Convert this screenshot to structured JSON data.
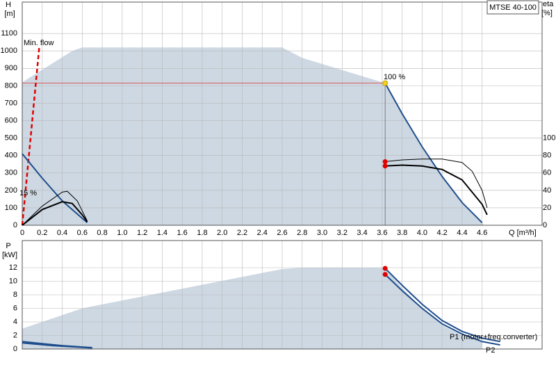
{
  "chart_data": [
    {
      "type": "line",
      "title": "MTSE 40-100",
      "ylabel": "H",
      "yunit": "[m]",
      "y2label": "eta",
      "y2unit": "[%]",
      "xlabel": "Q [m³/h]",
      "annotations": [
        "Min. flow",
        "100 %",
        "15 %"
      ],
      "xlim": [
        0,
        5.2
      ],
      "xticks": [
        0,
        0.2,
        0.4,
        0.6,
        0.8,
        {
          "value": 1,
          "label": "1.0"
        },
        1.2,
        1.4,
        1.6,
        1.8,
        {
          "value": 2,
          "label": "2.0"
        },
        2.2,
        2.4,
        2.6,
        2.8,
        {
          "value": 3,
          "label": "3.0"
        },
        3.2,
        3.4,
        3.6,
        3.8,
        {
          "value": 4,
          "label": "4.0"
        },
        4.2,
        4.4,
        4.6
      ],
      "ylim": [
        0,
        1280
      ],
      "yticks": [
        0,
        100,
        200,
        300,
        400,
        500,
        600,
        700,
        800,
        900,
        1000,
        1100
      ],
      "y2lim": [
        0,
        256
      ],
      "y2ticks": [
        0,
        20,
        40,
        60,
        80,
        100
      ],
      "grid": true,
      "series": [
        {
          "kind": "area",
          "color": "#cdd8e3",
          "x": [
            0,
            0,
            0.5,
            0.6,
            2.6,
            2.8,
            3.63,
            3.8,
            4.0,
            4.2,
            4.4,
            4.6,
            4.62
          ],
          "values": [
            0,
            820,
            1000,
            1020,
            1020,
            960,
            815,
            640,
            450,
            280,
            130,
            15,
            0
          ]
        },
        {
          "kind": "line",
          "color": "#e03030",
          "width": 0.8,
          "x": [
            0,
            3.63
          ],
          "values": [
            815,
            815
          ]
        },
        {
          "kind": "line",
          "color": "#666666",
          "width": 0.8,
          "x": [
            3.63,
            3.63
          ],
          "values": [
            0,
            815
          ]
        },
        {
          "kind": "line",
          "color": "#e00000",
          "width": 2.5,
          "dash": "6,4",
          "x": [
            0,
            0.17
          ],
          "values": [
            0,
            1020
          ]
        },
        {
          "kind": "line",
          "color": "#1f4e8c",
          "width": 2,
          "x": [
            3.63,
            3.8,
            4.0,
            4.2,
            4.4,
            4.6
          ],
          "values": [
            815,
            640,
            450,
            280,
            130,
            15
          ]
        },
        {
          "kind": "line",
          "color": "#1f4e8c",
          "width": 2,
          "x": [
            0,
            0.2,
            0.4,
            0.6,
            0.65
          ],
          "values": [
            410,
            270,
            140,
            40,
            15
          ]
        },
        {
          "kind": "line",
          "axis": "y2",
          "color": "#000000",
          "width": 1,
          "x": [
            3.63,
            3.8,
            4.0,
            4.2,
            4.4,
            4.5,
            4.6,
            4.65
          ],
          "values": [
            73,
            75,
            76,
            76,
            72,
            62,
            40,
            20
          ]
        },
        {
          "kind": "line",
          "axis": "y2",
          "color": "#000000",
          "width": 2,
          "x": [
            3.63,
            3.8,
            4.0,
            4.2,
            4.4,
            4.6,
            4.65
          ],
          "values": [
            68,
            69,
            68,
            64,
            52,
            24,
            12
          ]
        },
        {
          "kind": "line",
          "axis": "y2",
          "color": "#000000",
          "width": 1,
          "x": [
            0,
            0.2,
            0.4,
            0.45,
            0.55,
            0.65
          ],
          "values": [
            0,
            22,
            38,
            39,
            28,
            5
          ]
        },
        {
          "kind": "line",
          "axis": "y2",
          "color": "#000000",
          "width": 2,
          "x": [
            0,
            0.2,
            0.4,
            0.5,
            0.6,
            0.65
          ],
          "values": [
            0,
            18,
            27,
            25,
            12,
            4
          ]
        },
        {
          "kind": "points",
          "color": "#f5d020",
          "x": [
            3.63
          ],
          "values": [
            815
          ]
        },
        {
          "kind": "points",
          "axis": "y2",
          "color": "#e00000",
          "x": [
            3.63,
            3.63
          ],
          "values": [
            73,
            68
          ]
        }
      ]
    },
    {
      "type": "line",
      "ylabel": "P",
      "yunit": "[kW]",
      "annotations": [
        "P1 (motor+freq.converter)",
        "P2"
      ],
      "ylim": [
        0,
        16
      ],
      "yticks": [
        0,
        2,
        4,
        6,
        8,
        10,
        12
      ],
      "grid": true,
      "series": [
        {
          "kind": "area",
          "color": "#cdd8e3",
          "x": [
            0,
            0,
            0.6,
            2.6,
            2.8,
            3.63,
            3.8,
            4.0,
            4.2,
            4.4,
            4.6,
            4.6
          ],
          "values": [
            0,
            3,
            6,
            11.8,
            12,
            12,
            9,
            6,
            3.5,
            2,
            1,
            0
          ]
        },
        {
          "kind": "line",
          "color": "#1f4e8c",
          "width": 2,
          "x": [
            3.63,
            3.8,
            4.0,
            4.2,
            4.4,
            4.6,
            4.78
          ],
          "values": [
            11.9,
            9.4,
            6.6,
            4.2,
            2.6,
            1.6,
            1.1
          ]
        },
        {
          "kind": "line",
          "color": "#1f4e8c",
          "width": 2,
          "x": [
            3.63,
            3.8,
            4.0,
            4.2,
            4.4,
            4.6,
            4.78
          ],
          "values": [
            11,
            8.6,
            6,
            3.7,
            2.2,
            1.1,
            0.6
          ]
        },
        {
          "kind": "line",
          "color": "#1f4e8c",
          "width": 2,
          "x": [
            0,
            0.2,
            0.4,
            0.7
          ],
          "values": [
            1.1,
            0.8,
            0.5,
            0.2
          ]
        },
        {
          "kind": "line",
          "color": "#1f4e8c",
          "width": 2,
          "x": [
            0,
            0.3,
            0.7
          ],
          "values": [
            0.9,
            0.5,
            0.15
          ]
        },
        {
          "kind": "points",
          "color": "#e00000",
          "x": [
            3.63,
            3.63
          ],
          "values": [
            11.9,
            11
          ]
        }
      ]
    }
  ]
}
